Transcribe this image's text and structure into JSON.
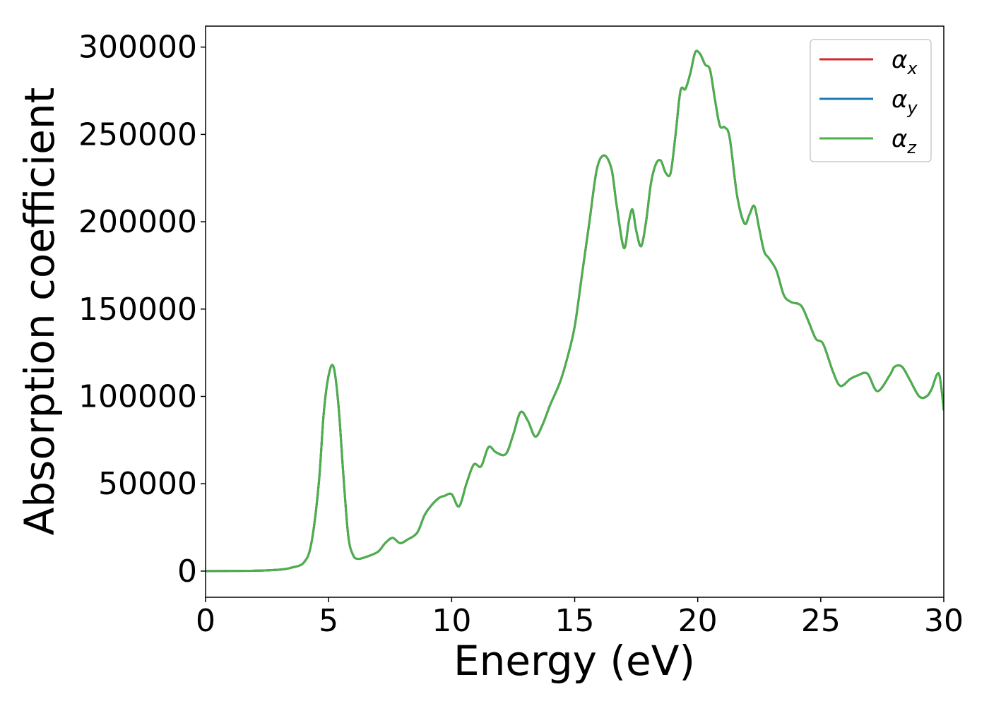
{
  "chart_data": {
    "type": "line",
    "title": "",
    "xlabel": "Energy (eV)",
    "ylabel": "Absorption coefficient",
    "xlim": [
      0,
      30
    ],
    "ylim": [
      -15000,
      312000
    ],
    "xticks": [
      0,
      5,
      10,
      15,
      20,
      25,
      30
    ],
    "xtick_labels": [
      "0",
      "5",
      "10",
      "15",
      "20",
      "25",
      "30"
    ],
    "yticks": [
      0,
      50000,
      100000,
      150000,
      200000,
      250000,
      300000
    ],
    "ytick_labels": [
      "0",
      "50000",
      "100000",
      "150000",
      "200000",
      "250000",
      "300000"
    ],
    "grid": false,
    "legend": "top-right",
    "x": [
      0,
      1,
      2,
      3,
      3.5,
      4,
      4.3,
      4.6,
      4.8,
      5.0,
      5.2,
      5.4,
      5.6,
      5.8,
      6.0,
      6.2,
      6.5,
      7.0,
      7.3,
      7.6,
      7.9,
      8.2,
      8.6,
      8.9,
      9.2,
      9.5,
      9.7,
      10.0,
      10.3,
      10.6,
      10.9,
      11.2,
      11.5,
      11.8,
      12.2,
      12.5,
      12.8,
      13.1,
      13.4,
      13.7,
      14.0,
      14.4,
      14.7,
      15.0,
      15.3,
      15.6,
      15.9,
      16.2,
      16.5,
      16.7,
      17.0,
      17.2,
      17.35,
      17.5,
      17.7,
      17.9,
      18.1,
      18.3,
      18.5,
      18.7,
      18.9,
      19.1,
      19.3,
      19.5,
      19.7,
      19.9,
      20.1,
      20.3,
      20.5,
      20.7,
      20.9,
      21.1,
      21.3,
      21.6,
      21.9,
      22.1,
      22.3,
      22.5,
      22.7,
      22.9,
      23.2,
      23.5,
      23.8,
      24.2,
      24.5,
      24.8,
      25.1,
      25.5,
      25.8,
      26.2,
      26.5,
      26.9,
      27.3,
      27.8,
      28.0,
      28.3,
      28.6,
      29.0,
      29.3,
      29.5,
      29.8,
      30.0
    ],
    "series": [
      {
        "name": "αx",
        "symbol": "α",
        "subscript": "x",
        "color": "#d62728",
        "values": [
          0,
          100,
          200,
          800,
          2000,
          5000,
          16000,
          50000,
          90000,
          112000,
          117000,
          95000,
          55000,
          20000,
          9000,
          7000,
          8000,
          11000,
          16000,
          19000,
          16000,
          18000,
          22000,
          32000,
          38000,
          42000,
          43000,
          44000,
          37000,
          50000,
          61000,
          60000,
          71000,
          68000,
          67000,
          78000,
          91000,
          86000,
          77000,
          84000,
          95000,
          108000,
          122000,
          140000,
          170000,
          200000,
          230000,
          238000,
          230000,
          210000,
          185000,
          200000,
          207000,
          195000,
          186000,
          200000,
          222000,
          233000,
          235000,
          228000,
          228000,
          250000,
          275000,
          276000,
          285000,
          297000,
          296000,
          290000,
          287000,
          270000,
          255000,
          254000,
          248000,
          215000,
          199000,
          204000,
          209000,
          196000,
          183000,
          179000,
          172000,
          158000,
          154000,
          152000,
          143000,
          133000,
          130000,
          114000,
          106000,
          110000,
          112000,
          113000,
          103000,
          112000,
          117000,
          117000,
          110000,
          100000,
          100000,
          104000,
          113000,
          92000
        ]
      },
      {
        "name": "αy",
        "symbol": "α",
        "subscript": "y",
        "color": "#1f77b4",
        "values": [
          0,
          100,
          200,
          800,
          2000,
          5000,
          16000,
          50000,
          90000,
          112000,
          117000,
          95000,
          55000,
          20000,
          9000,
          7000,
          8000,
          11000,
          16000,
          19000,
          16000,
          18000,
          22000,
          32000,
          38000,
          42000,
          43000,
          44000,
          37000,
          50000,
          61000,
          60000,
          71000,
          68000,
          67000,
          78000,
          91000,
          86000,
          77000,
          84000,
          95000,
          108000,
          122000,
          140000,
          170000,
          200000,
          230000,
          238000,
          230000,
          210000,
          185000,
          200000,
          207000,
          195000,
          186000,
          200000,
          222000,
          233000,
          235000,
          228000,
          228000,
          250000,
          275000,
          276000,
          285000,
          297000,
          296000,
          290000,
          287000,
          270000,
          255000,
          254000,
          248000,
          215000,
          199000,
          204000,
          209000,
          196000,
          183000,
          179000,
          172000,
          158000,
          154000,
          152000,
          143000,
          133000,
          130000,
          114000,
          106000,
          110000,
          112000,
          113000,
          103000,
          112000,
          117000,
          117000,
          110000,
          100000,
          100000,
          104000,
          113000,
          92000
        ]
      },
      {
        "name": "αz",
        "symbol": "α",
        "subscript": "z",
        "color": "#4daf4a",
        "values": [
          0,
          100,
          200,
          800,
          2000,
          5000,
          16000,
          50000,
          90000,
          112000,
          117000,
          95000,
          55000,
          20000,
          9000,
          7000,
          8000,
          11000,
          16000,
          19000,
          16000,
          18000,
          22000,
          32000,
          38000,
          42000,
          43000,
          44000,
          37000,
          50000,
          61000,
          60000,
          71000,
          68000,
          67000,
          78000,
          91000,
          86000,
          77000,
          84000,
          95000,
          108000,
          122000,
          140000,
          170000,
          200000,
          230000,
          238000,
          230000,
          210000,
          185000,
          200000,
          207000,
          195000,
          186000,
          200000,
          222000,
          233000,
          235000,
          228000,
          228000,
          250000,
          275000,
          276000,
          285000,
          297000,
          296000,
          290000,
          287000,
          270000,
          255000,
          254000,
          248000,
          215000,
          199000,
          204000,
          209000,
          196000,
          183000,
          179000,
          172000,
          158000,
          154000,
          152000,
          143000,
          133000,
          130000,
          114000,
          106000,
          110000,
          112000,
          113000,
          103000,
          112000,
          117000,
          117000,
          110000,
          100000,
          100000,
          104000,
          113000,
          92000
        ]
      }
    ]
  }
}
